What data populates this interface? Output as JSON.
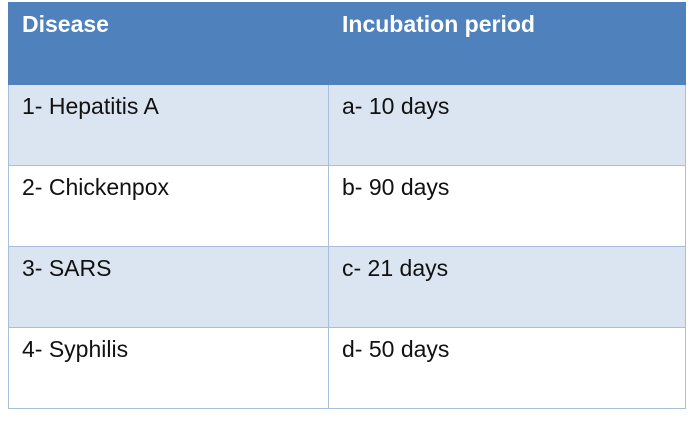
{
  "table": {
    "headers": [
      "Disease",
      "Incubation period"
    ],
    "rows": [
      [
        "1- Hepatitis A",
        "a- 10 days"
      ],
      [
        "2- Chickenpox",
        "b- 90 days"
      ],
      [
        "3- SARS",
        "c- 21 days"
      ],
      [
        "4- Syphilis",
        "d- 50 days"
      ]
    ]
  },
  "colors": {
    "header_bg": "#4f81bd",
    "header_text": "#ffffff",
    "band_row": "#dbe5f1",
    "plain_row": "#ffffff",
    "grid": "#a8bfdc"
  }
}
